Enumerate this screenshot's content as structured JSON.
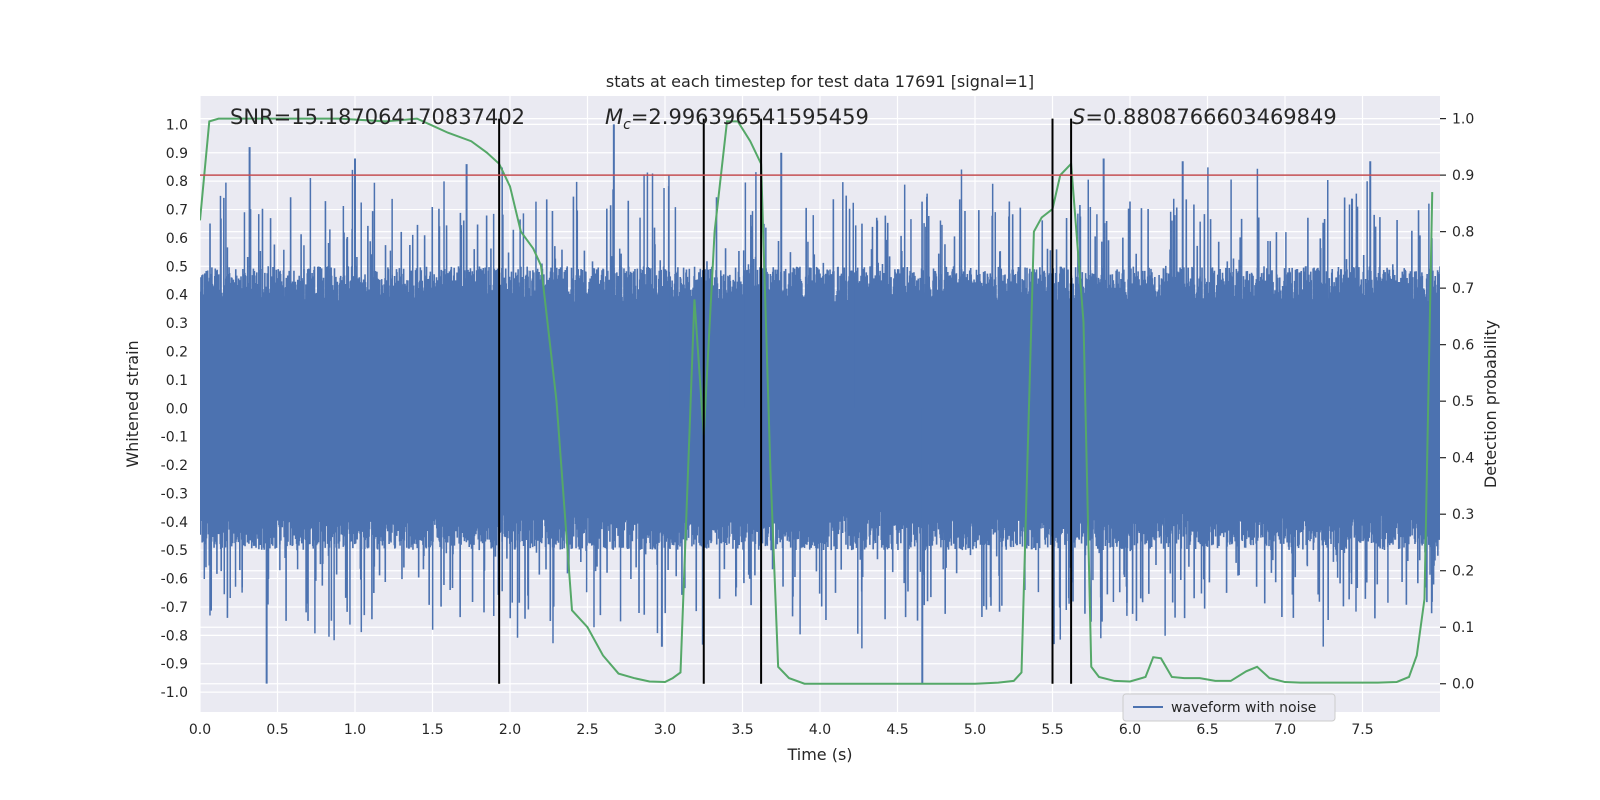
{
  "chart_data": {
    "type": "line",
    "title": "stats at each timestep for test data 17691 [signal=1]",
    "xlabel": "Time (s)",
    "ylabel_left": "Whitened strain",
    "ylabel_right": "Detection probability",
    "xlim": [
      0.0,
      8.0
    ],
    "ylim_left": [
      -1.07,
      1.1
    ],
    "ylim_right": [
      -0.05,
      1.04
    ],
    "x_ticks": [
      "0.0",
      "0.5",
      "1.0",
      "1.5",
      "2.0",
      "2.5",
      "3.0",
      "3.5",
      "4.0",
      "4.5",
      "5.0",
      "5.5",
      "6.0",
      "6.5",
      "7.0",
      "7.5"
    ],
    "y_left_ticks": [
      "1.0",
      "0.9",
      "0.8",
      "0.7",
      "0.6",
      "0.5",
      "0.4",
      "0.3",
      "0.2",
      "0.1",
      "0.0",
      "-0.1",
      "-0.2",
      "-0.3",
      "-0.4",
      "-0.5",
      "-0.6",
      "-0.7",
      "-0.8",
      "-0.9",
      "-1.0"
    ],
    "y_right_ticks": [
      "1.0",
      "0.9",
      "0.8",
      "0.7",
      "0.6",
      "0.5",
      "0.4",
      "0.3",
      "0.2",
      "0.1",
      "0.0"
    ],
    "annotations": {
      "snr": "SNR=15.187064170837402",
      "mc_symbol": "M",
      "mc_sub": "c",
      "mc_value": "=2.996396541595459",
      "s_symbol": "S",
      "s_value": "=0.8808766603469849"
    },
    "threshold": {
      "value": 0.9,
      "axis": "right",
      "color": "#c44e52"
    },
    "vertical_lines": [
      1.93,
      3.25,
      3.62,
      5.5,
      5.62
    ],
    "legend": {
      "label": "waveform with noise",
      "position": "lower-right"
    },
    "series": [
      {
        "name": "waveform with noise",
        "axis": "left",
        "color": "#4c72b0",
        "style": "dense noisy strain trace, envelope approx -0.5..0.5 with spikes to about +/-0.95",
        "peaks": [
          {
            "x": 0.32,
            "y": 0.92
          },
          {
            "x": 0.43,
            "y": -0.97
          },
          {
            "x": 1.0,
            "y": 0.88
          },
          {
            "x": 1.72,
            "y": 0.86
          },
          {
            "x": 2.67,
            "y": 1.0
          },
          {
            "x": 2.98,
            "y": -0.84
          },
          {
            "x": 3.75,
            "y": 0.9
          },
          {
            "x": 4.66,
            "y": -0.97
          },
          {
            "x": 5.83,
            "y": 0.88
          },
          {
            "x": 6.34,
            "y": 0.87
          },
          {
            "x": 7.55,
            "y": 0.87
          }
        ]
      },
      {
        "name": "detection probability",
        "axis": "right",
        "color": "#55a868",
        "x": [
          0.0,
          0.06,
          0.12,
          0.3,
          0.6,
          0.9,
          1.2,
          1.4,
          1.6,
          1.75,
          1.85,
          1.93,
          2.0,
          2.07,
          2.15,
          2.2,
          2.3,
          2.4,
          2.5,
          2.6,
          2.7,
          2.8,
          2.9,
          3.0,
          3.05,
          3.1,
          3.19,
          3.25,
          3.32,
          3.4,
          3.47,
          3.55,
          3.62,
          3.68,
          3.73,
          3.8,
          3.9,
          4.0,
          4.2,
          4.5,
          4.8,
          5.0,
          5.15,
          5.25,
          5.3,
          5.38,
          5.43,
          5.5,
          5.55,
          5.62,
          5.7,
          5.75,
          5.8,
          5.9,
          6.0,
          6.1,
          6.15,
          6.2,
          6.27,
          6.35,
          6.45,
          6.55,
          6.65,
          6.75,
          6.82,
          6.9,
          7.0,
          7.1,
          7.3,
          7.6,
          7.72,
          7.8,
          7.85,
          7.9,
          7.95
        ],
        "values": [
          0.82,
          0.995,
          1.0,
          1.0,
          1.0,
          1.0,
          0.995,
          1.0,
          0.975,
          0.96,
          0.94,
          0.92,
          0.88,
          0.8,
          0.77,
          0.74,
          0.5,
          0.13,
          0.1,
          0.05,
          0.018,
          0.01,
          0.004,
          0.003,
          0.01,
          0.02,
          0.68,
          0.44,
          0.8,
          0.995,
          0.995,
          0.96,
          0.92,
          0.38,
          0.03,
          0.01,
          0.0,
          0.0,
          0.0,
          0.0,
          0.0,
          0.0,
          0.002,
          0.005,
          0.02,
          0.8,
          0.825,
          0.84,
          0.9,
          0.92,
          0.64,
          0.03,
          0.012,
          0.005,
          0.004,
          0.012,
          0.047,
          0.045,
          0.012,
          0.01,
          0.01,
          0.005,
          0.005,
          0.022,
          0.03,
          0.01,
          0.003,
          0.002,
          0.002,
          0.002,
          0.003,
          0.012,
          0.05,
          0.15,
          0.87
        ]
      }
    ]
  }
}
